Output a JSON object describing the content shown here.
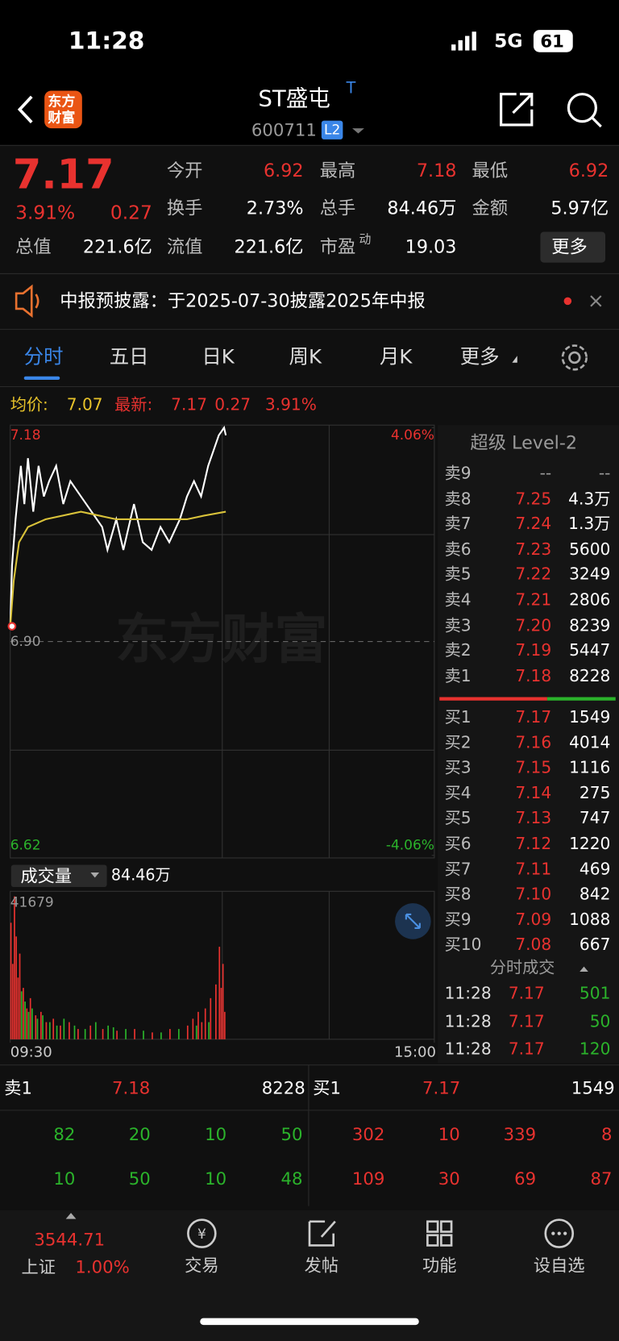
{
  "status": {
    "time": "11:28",
    "network": "5G",
    "battery": "61"
  },
  "header": {
    "logo": [
      "东方",
      "财富"
    ],
    "title": "ST盛屯",
    "badge": "T",
    "code": "600711",
    "level": "L2"
  },
  "quote": {
    "price": "7.17",
    "pct": "3.91%",
    "change": "0.27",
    "fields": [
      {
        "label": "今开",
        "value": "6.92"
      },
      {
        "label": "最高",
        "value": "7.18"
      },
      {
        "label": "最低",
        "value": "6.92"
      },
      {
        "label": "换手",
        "value": "2.73%"
      },
      {
        "label": "总手",
        "value": "84.46万"
      },
      {
        "label": "金额",
        "value": "5.97亿"
      },
      {
        "label": "总值",
        "value": "221.6亿"
      },
      {
        "label": "流值",
        "value": "221.6亿"
      },
      {
        "label": "市盈",
        "sup": "动",
        "value": "19.03"
      }
    ],
    "more": "更多"
  },
  "notice": "中报预披露：于2025-07-30披露2025年中报",
  "tabs": [
    "分时",
    "五日",
    "日K",
    "周K",
    "月K",
    "更多"
  ],
  "info": {
    "avg_label": "均价:",
    "avg": "7.07",
    "latest_label": "最新:",
    "latest": "7.17",
    "change": "0.27",
    "pct": "3.91%"
  },
  "chart_data": {
    "type": "line",
    "watermark": "东方财富",
    "xlim": [
      0,
      240
    ],
    "ylim": [
      6.62,
      7.18
    ],
    "yticks": [
      {
        "value": 7.18,
        "label": "7.18"
      },
      {
        "value": 6.9,
        "label": "6.90"
      },
      {
        "value": 6.62,
        "label": "6.62"
      }
    ],
    "y2lim": [
      -4.06,
      4.06
    ],
    "y2ticks": [
      {
        "value": 4.06,
        "label": "4.06%"
      },
      {
        "value": -4.06,
        "label": "-4.06%"
      }
    ],
    "series": [
      {
        "name": "最新",
        "color": "#ffffff",
        "x": [
          0,
          1,
          3,
          6,
          8,
          10,
          13,
          16,
          19,
          22,
          26,
          30,
          34,
          40,
          46,
          52,
          55,
          60,
          64,
          70,
          75,
          80,
          85,
          90,
          96,
          100,
          104,
          108,
          112,
          115,
          118,
          121,
          122
        ],
        "values": [
          6.92,
          7.0,
          7.06,
          7.13,
          7.08,
          7.14,
          7.07,
          7.13,
          7.09,
          7.11,
          7.13,
          7.08,
          7.11,
          7.09,
          7.07,
          7.05,
          7.02,
          7.06,
          7.02,
          7.08,
          7.03,
          7.02,
          7.05,
          7.03,
          7.06,
          7.09,
          7.11,
          7.09,
          7.13,
          7.15,
          7.17,
          7.18,
          7.17
        ]
      },
      {
        "name": "均价",
        "color": "#d9c23a",
        "x": [
          0,
          2,
          5,
          10,
          20,
          40,
          60,
          80,
          100,
          110,
          122
        ],
        "values": [
          6.92,
          6.98,
          7.03,
          7.05,
          7.06,
          7.07,
          7.06,
          7.06,
          7.06,
          7.065,
          7.07
        ]
      }
    ]
  },
  "volume_data": {
    "type": "bar",
    "label": "成交量",
    "total": "84.46万",
    "xlim": [
      0,
      240
    ],
    "ylim": [
      0,
      41679
    ],
    "yticks": [
      41679
    ],
    "xticks": [
      {
        "value": 0,
        "label": "09:30"
      },
      {
        "value": 240,
        "label": "15:00"
      }
    ],
    "series": [
      {
        "color": "#e8322f",
        "x": [
          0,
          1,
          2,
          3,
          4,
          5,
          7,
          9,
          11,
          14,
          17,
          20,
          24,
          28,
          33,
          38,
          45,
          52,
          60,
          70,
          80,
          90,
          100,
          103,
          106,
          108,
          110,
          113,
          116,
          118,
          119,
          120,
          121
        ],
        "values": [
          34000,
          22000,
          41679,
          30000,
          18000,
          25000,
          15000,
          9000,
          12000,
          7000,
          8000,
          5000,
          6000,
          4000,
          5000,
          3000,
          4000,
          3000,
          2500,
          3000,
          2000,
          3000,
          4000,
          6000,
          8000,
          5000,
          9000,
          12000,
          16000,
          27000,
          15000,
          22000,
          8000
        ]
      },
      {
        "color": "#2bb32b",
        "x": [
          6,
          8,
          10,
          12,
          15,
          18,
          22,
          26,
          30,
          36,
          42,
          48,
          55,
          58,
          65,
          75,
          85,
          95,
          105,
          112
        ],
        "values": [
          14000,
          11000,
          8000,
          9000,
          6000,
          7000,
          5000,
          4000,
          6000,
          4000,
          3000,
          5000,
          4000,
          3500,
          3000,
          2500,
          2000,
          3000,
          4000,
          5000
        ]
      }
    ]
  },
  "order_book": {
    "title": "超级 Level-2",
    "asks": [
      [
        "卖9",
        "--",
        "--"
      ],
      [
        "卖8",
        "7.25",
        "4.3万"
      ],
      [
        "卖7",
        "7.24",
        "1.3万"
      ],
      [
        "卖6",
        "7.23",
        "5600"
      ],
      [
        "卖5",
        "7.22",
        "3249"
      ],
      [
        "卖4",
        "7.21",
        "2806"
      ],
      [
        "卖3",
        "7.20",
        "8239"
      ],
      [
        "卖2",
        "7.19",
        "5447"
      ],
      [
        "卖1",
        "7.18",
        "8228"
      ]
    ],
    "bids": [
      [
        "买1",
        "7.17",
        "1549"
      ],
      [
        "买2",
        "7.16",
        "4014"
      ],
      [
        "买3",
        "7.15",
        "1116"
      ],
      [
        "买4",
        "7.14",
        "275"
      ],
      [
        "买5",
        "7.13",
        "747"
      ],
      [
        "买6",
        "7.12",
        "1220"
      ],
      [
        "买7",
        "7.11",
        "469"
      ],
      [
        "买8",
        "7.10",
        "842"
      ],
      [
        "买9",
        "7.09",
        "1088"
      ],
      [
        "买10",
        "7.08",
        "667"
      ]
    ],
    "trades_title": "分时成交",
    "trades": [
      [
        "11:28",
        "7.17",
        "501"
      ],
      [
        "11:28",
        "7.17",
        "50"
      ],
      [
        "11:28",
        "7.17",
        "120"
      ]
    ]
  },
  "queue": {
    "sell": [
      "卖1",
      "7.18",
      "8228"
    ],
    "buy": [
      "买1",
      "7.17",
      "1549"
    ],
    "sell_orders": [
      [
        "82",
        "20",
        "10",
        "50"
      ],
      [
        "10",
        "50",
        "10",
        "48"
      ]
    ],
    "buy_orders": [
      [
        "302",
        "10",
        "339",
        "8"
      ],
      [
        "109",
        "30",
        "69",
        "87"
      ]
    ]
  },
  "nav": {
    "index_value": "3544.71",
    "index_name": "上证",
    "index_pct": "1.00%",
    "tabs": [
      "交易",
      "发帖",
      "功能",
      "设自选"
    ]
  }
}
